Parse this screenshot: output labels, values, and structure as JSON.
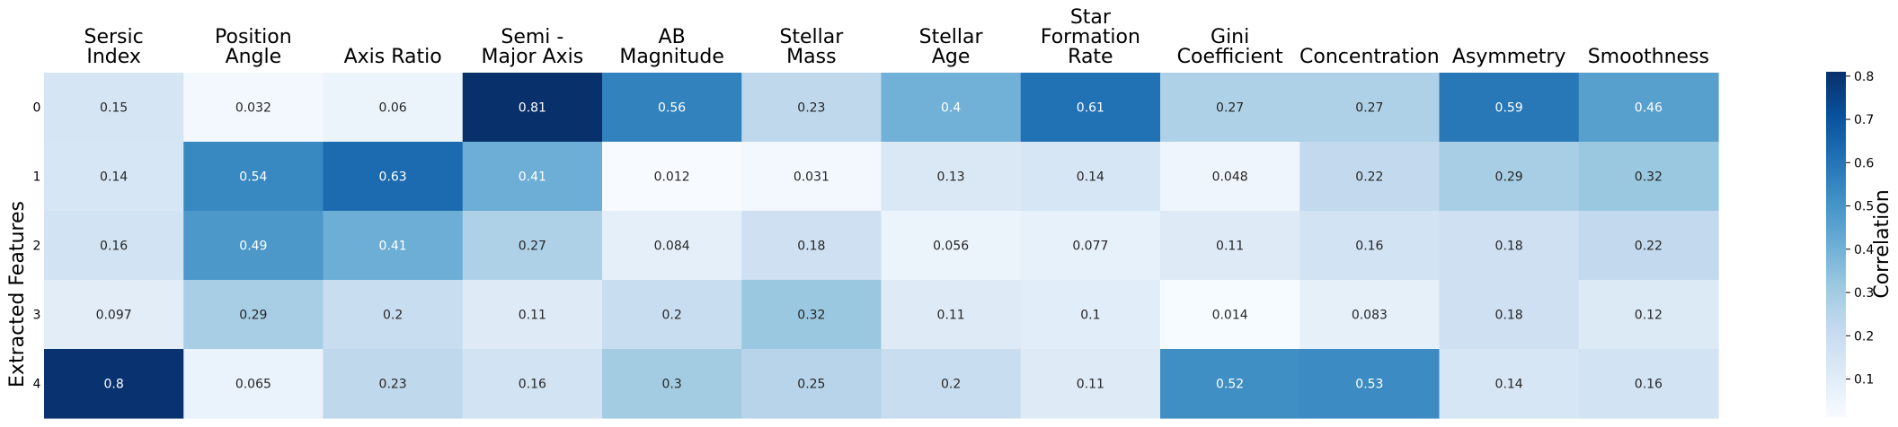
{
  "chart_data": {
    "type": "heatmap",
    "title": "",
    "ylabel": "Extracted Features",
    "colorbar_label": "Correlation",
    "colormap": "Blues",
    "colorbar_range": [
      0.012,
      0.81
    ],
    "colorbar_ticks": [
      "0.1",
      "0.2",
      "0.3",
      "0.4",
      "0.5",
      "0.6",
      "0.7",
      "0.8"
    ],
    "columns": [
      [
        "Sersic",
        "Index"
      ],
      [
        "Position",
        "Angle"
      ],
      [
        "Axis Ratio"
      ],
      [
        "Semi -",
        "Major Axis"
      ],
      [
        "AB",
        "Magnitude"
      ],
      [
        "Stellar",
        "Mass"
      ],
      [
        "Stellar",
        "Age"
      ],
      [
        "Star",
        "Formation",
        "Rate"
      ],
      [
        "Gini",
        "Coefficient"
      ],
      [
        "Concentration"
      ],
      [
        "Asymmetry"
      ],
      [
        "Smoothness"
      ]
    ],
    "rows": [
      "0",
      "1",
      "2",
      "3",
      "4"
    ],
    "values": [
      [
        0.15,
        0.032,
        0.06,
        0.81,
        0.56,
        0.23,
        0.4,
        0.61,
        0.27,
        0.27,
        0.59,
        0.46
      ],
      [
        0.14,
        0.54,
        0.63,
        0.41,
        0.012,
        0.031,
        0.13,
        0.14,
        0.048,
        0.22,
        0.29,
        0.32
      ],
      [
        0.16,
        0.49,
        0.41,
        0.27,
        0.084,
        0.18,
        0.056,
        0.077,
        0.11,
        0.16,
        0.18,
        0.22
      ],
      [
        0.097,
        0.29,
        0.2,
        0.11,
        0.2,
        0.32,
        0.11,
        0.1,
        0.014,
        0.083,
        0.18,
        0.12
      ],
      [
        0.8,
        0.065,
        0.23,
        0.16,
        0.3,
        0.25,
        0.2,
        0.11,
        0.52,
        0.53,
        0.14,
        0.16
      ]
    ],
    "cell_labels": [
      [
        "0.15",
        "0.032",
        "0.06",
        "0.81",
        "0.56",
        "0.23",
        "0.4",
        "0.61",
        "0.27",
        "0.27",
        "0.59",
        "0.46"
      ],
      [
        "0.14",
        "0.54",
        "0.63",
        "0.41",
        "0.012",
        "0.031",
        "0.13",
        "0.14",
        "0.048",
        "0.22",
        "0.29",
        "0.32"
      ],
      [
        "0.16",
        "0.49",
        "0.41",
        "0.27",
        "0.084",
        "0.18",
        "0.056",
        "0.077",
        "0.11",
        "0.16",
        "0.18",
        "0.22"
      ],
      [
        "0.097",
        "0.29",
        "0.2",
        "0.11",
        "0.2",
        "0.32",
        "0.11",
        "0.1",
        "0.014",
        "0.083",
        "0.18",
        "0.12"
      ],
      [
        "0.8",
        "0.065",
        "0.23",
        "0.16",
        "0.3",
        "0.25",
        "0.2",
        "0.11",
        "0.52",
        "0.53",
        "0.14",
        "0.16"
      ]
    ],
    "grid": false,
    "legend": "colorbar-right"
  }
}
